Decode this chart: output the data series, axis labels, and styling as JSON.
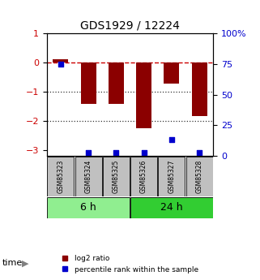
{
  "title": "GDS1929 / 12224",
  "samples": [
    "GSM85323",
    "GSM85324",
    "GSM85325",
    "GSM85326",
    "GSM85327",
    "GSM85328"
  ],
  "log2_ratio": [
    0.12,
    -1.42,
    -1.42,
    -2.25,
    -0.72,
    -1.82
  ],
  "percentile_rank": [
    75,
    3,
    3,
    3,
    13,
    3
  ],
  "time_groups": [
    {
      "label": "6 h",
      "start": 0,
      "end": 3,
      "color": "#90EE90"
    },
    {
      "label": "24 h",
      "start": 3,
      "end": 6,
      "color": "#32CD32"
    }
  ],
  "bar_color": "#8B0000",
  "dot_color": "#0000CD",
  "left_ylim": [
    -3.2,
    1.0
  ],
  "right_ylim": [
    0,
    100
  ],
  "left_yticks": [
    -3,
    -2,
    -1,
    0,
    1
  ],
  "right_yticks": [
    0,
    25,
    50,
    75,
    100
  ],
  "right_yticklabels": [
    "0",
    "25",
    "50",
    "75",
    "100%"
  ],
  "hline_color": "#CC0000",
  "dotted_line_color": "#333333",
  "bg_color": "#ffffff",
  "sample_box_color": "#C0C0C0",
  "legend_log2_label": "log2 ratio",
  "legend_pct_label": "percentile rank within the sample",
  "time_label": "time"
}
